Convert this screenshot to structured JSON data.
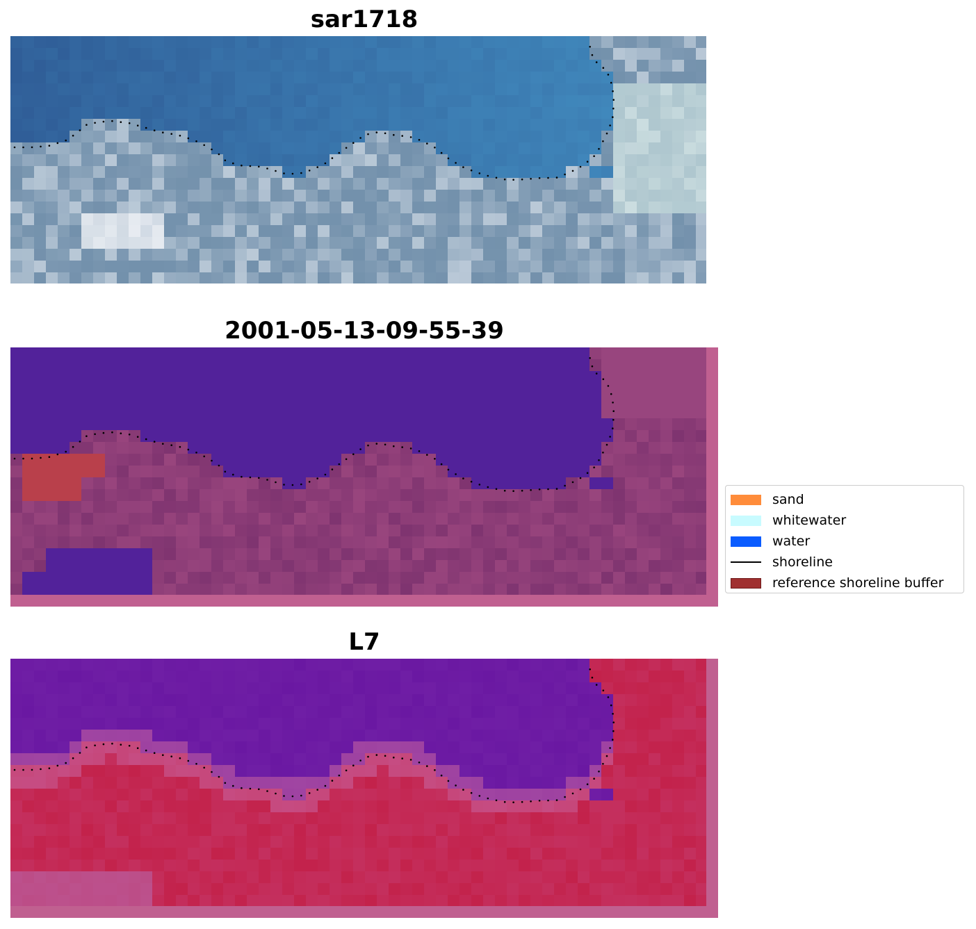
{
  "panels": [
    {
      "title": "sar1718",
      "layer": "rgb-image"
    },
    {
      "title": "2001-05-13-09-55-39",
      "layer": "classified-image"
    },
    {
      "title": "L7",
      "layer": "mndwi-image"
    }
  ],
  "legend": {
    "items": [
      {
        "label": "sand",
        "kind": "patch",
        "color": "#ff8c3a"
      },
      {
        "label": "whitewater",
        "kind": "patch",
        "color": "#c8fbff"
      },
      {
        "label": "water",
        "kind": "patch",
        "color": "#0a5cff"
      },
      {
        "label": "shoreline",
        "kind": "line",
        "color": "#000000"
      },
      {
        "label": "reference shoreline buffer",
        "kind": "patch",
        "color": "#a03030"
      }
    ]
  },
  "colors": {
    "rgb_water": "#2f5c96",
    "rgb_land": "#7391ac",
    "class_water": "#52229a",
    "class_land": "#7f3470",
    "class_buffer": "#b9404b",
    "index_water": "#6a18a2",
    "index_land": "#c3224b",
    "frame_margin": "#c06090",
    "shoreline_dots": "#000000"
  }
}
